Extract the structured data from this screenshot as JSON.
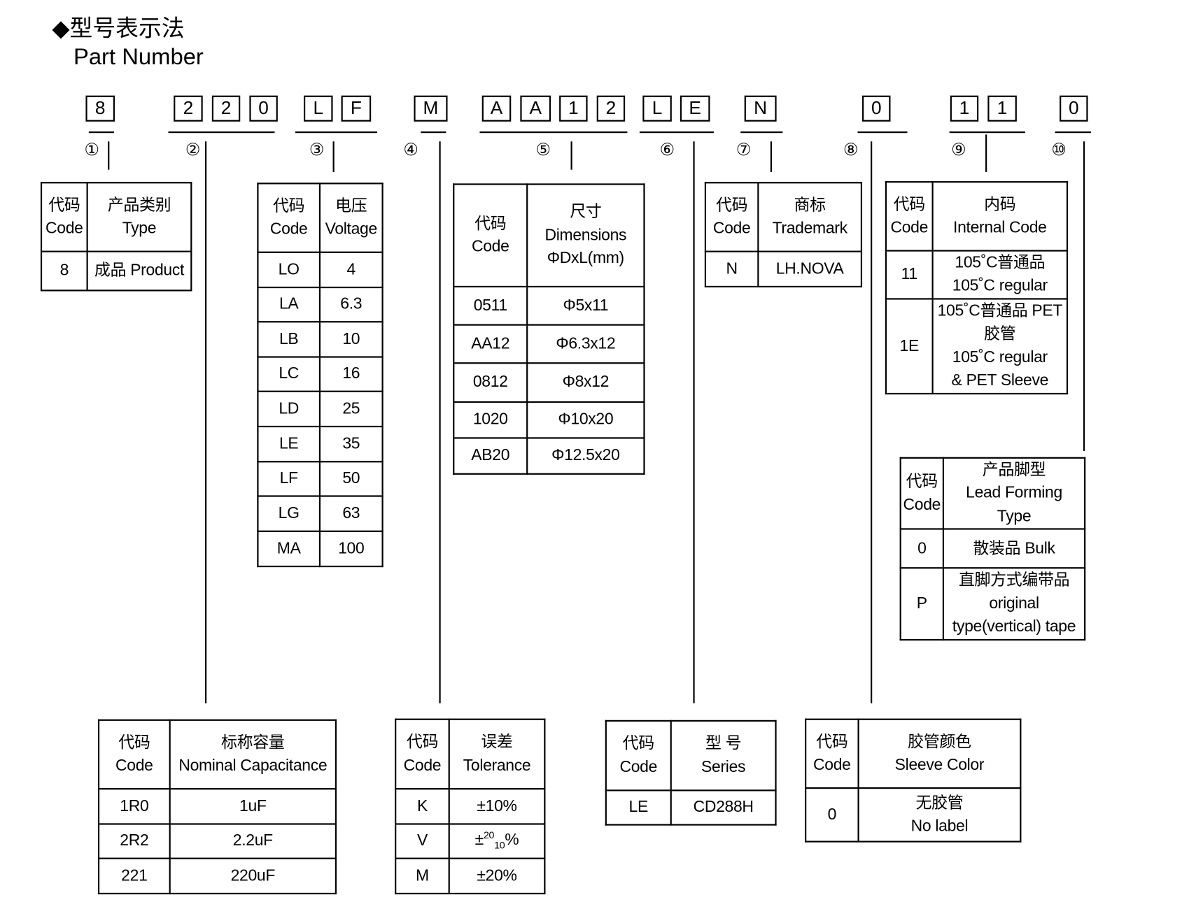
{
  "header": {
    "title": "◆型号表示法",
    "subtitle": "Part Number"
  },
  "part_chars": [
    "8",
    "2",
    "2",
    "0",
    "L",
    "F",
    "M",
    "A",
    "A",
    "1",
    "2",
    "L",
    "E",
    "N",
    "0",
    "1",
    "1",
    "0"
  ],
  "segment_numbers": [
    "①",
    "②",
    "③",
    "④",
    "⑤",
    "⑥",
    "⑦",
    "⑧",
    "⑨",
    "⑩"
  ],
  "tables": [
    {
      "id": "t1",
      "name": "product-type-table",
      "rows": [
        [
          "代码\nCode",
          "产品类别\nType"
        ],
        [
          "8",
          "成品 Product"
        ]
      ]
    },
    {
      "id": "t2",
      "name": "voltage-table",
      "rows": [
        [
          "代码\nCode",
          "电压\nVoltage"
        ],
        [
          "LO",
          "4"
        ],
        [
          "LA",
          "6.3"
        ],
        [
          "LB",
          "10"
        ],
        [
          "LC",
          "16"
        ],
        [
          "LD",
          "25"
        ],
        [
          "LE",
          "35"
        ],
        [
          "LF",
          "50"
        ],
        [
          "LG",
          "63"
        ],
        [
          "MA",
          "100"
        ]
      ]
    },
    {
      "id": "t3",
      "name": "dimensions-table",
      "rows": [
        [
          "代码\nCode",
          "尺寸\nDimensions\nΦDxL(mm)"
        ],
        [
          "0511",
          "Φ5x11"
        ],
        [
          "AA12",
          "Φ6.3x12"
        ],
        [
          "0812",
          "Φ8x12"
        ],
        [
          "1020",
          "Φ10x20"
        ],
        [
          "AB20",
          "Φ12.5x20"
        ]
      ]
    },
    {
      "id": "t4",
      "name": "trademark-table",
      "rows": [
        [
          "代码\nCode",
          "商标\nTrademark"
        ],
        [
          "N",
          "LH.NOVA"
        ]
      ]
    },
    {
      "id": "t5",
      "name": "internal-code-table",
      "rows": [
        [
          "代码\nCode",
          "内码\nInternal Code"
        ],
        [
          "11",
          "105˚C普通品\n105˚C regular"
        ],
        [
          "1E",
          "105˚C普通品 PET\n胶管\n105˚C regular\n& PET Sleeve"
        ]
      ]
    },
    {
      "id": "t6",
      "name": "lead-forming-table",
      "rows": [
        [
          "代码\nCode",
          "产品脚型\nLead Forming\nType"
        ],
        [
          "0",
          "散装品 Bulk"
        ],
        [
          "P",
          "直脚方式编带品\noriginal\ntype(vertical) tape"
        ]
      ]
    },
    {
      "id": "b1",
      "name": "capacitance-table",
      "rows": [
        [
          "代码\nCode",
          "标称容量\nNominal Capacitance"
        ],
        [
          "1R0",
          "1uF"
        ],
        [
          "2R2",
          "2.2uF"
        ],
        [
          "221",
          "220uF"
        ]
      ]
    },
    {
      "id": "b2",
      "name": "tolerance-table",
      "rows": [
        [
          "代码\nCode",
          "误差\nTolerance"
        ],
        [
          "K",
          "±10%"
        ],
        [
          "V",
          {
            "prefix": "±",
            "sup": "20",
            "sub": "10",
            "suffix": "%"
          }
        ],
        [
          "M",
          "±20%"
        ]
      ]
    },
    {
      "id": "b3",
      "name": "series-table",
      "rows": [
        [
          "代码\nCode",
          "型  号\nSeries"
        ],
        [
          "LE",
          "CD288H"
        ]
      ]
    },
    {
      "id": "b4",
      "name": "sleeve-color-table",
      "rows": [
        [
          "代码\nCode",
          "胶管颜色\nSleeve Color"
        ],
        [
          "0",
          "无胶管\nNo label"
        ]
      ]
    }
  ]
}
